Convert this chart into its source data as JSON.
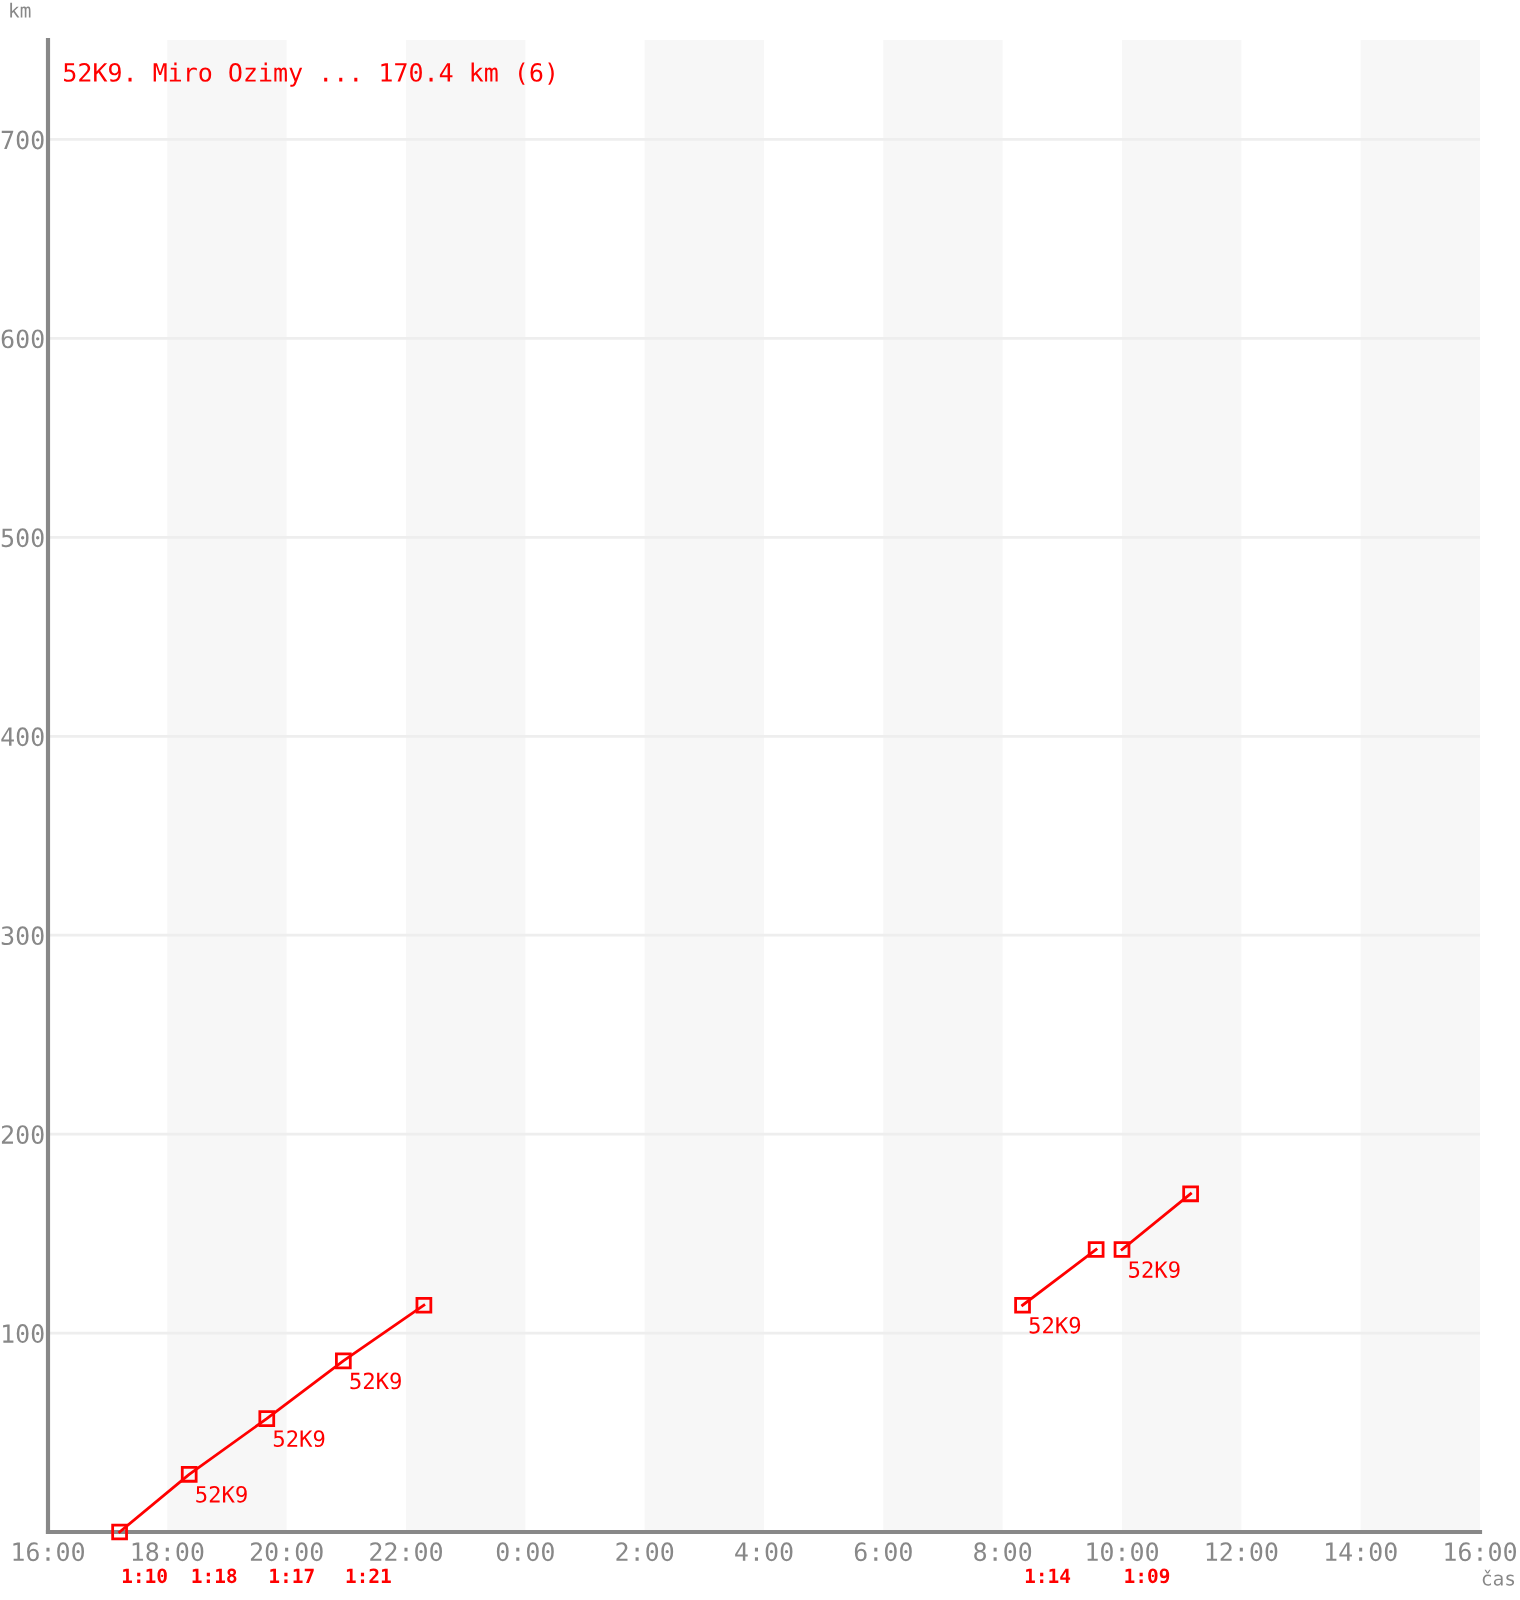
{
  "chart_data": {
    "type": "line",
    "title": "52K9. Miro Ozimy ... 170.4 km (6)",
    "xlabel": "čas",
    "ylabel": "km",
    "xlim": [
      "2000-01-01T16:00",
      "2000-01-02T16:00"
    ],
    "ylim": [
      0,
      750
    ],
    "xticks": [
      {
        "value": "2000-01-01T16:00",
        "label": "16:00"
      },
      {
        "value": "2000-01-01T18:00",
        "label": "18:00"
      },
      {
        "value": "2000-01-01T20:00",
        "label": "20:00"
      },
      {
        "value": "2000-01-01T22:00",
        "label": "22:00"
      },
      {
        "value": "2000-01-02T00:00",
        "label": "0:00"
      },
      {
        "value": "2000-01-02T02:00",
        "label": "2:00"
      },
      {
        "value": "2000-01-02T04:00",
        "label": "4:00"
      },
      {
        "value": "2000-01-02T06:00",
        "label": "6:00"
      },
      {
        "value": "2000-01-02T08:00",
        "label": "8:00"
      },
      {
        "value": "2000-01-02T10:00",
        "label": "10:00"
      },
      {
        "value": "2000-01-02T12:00",
        "label": "12:00"
      },
      {
        "value": "2000-01-02T14:00",
        "label": "14:00"
      },
      {
        "value": "2000-01-02T16:00",
        "label": "16:00"
      }
    ],
    "yticks": [
      100,
      200,
      300,
      400,
      500,
      600,
      700
    ],
    "grid": "y",
    "legend": false,
    "marker": "square",
    "line_style": "solid",
    "series": [
      {
        "color": "#ff0000",
        "x": [
          "2000-01-01T17:12",
          "2000-01-01T18:22",
          "2000-01-01T19:40",
          "2000-01-01T20:57",
          "2000-01-01T22:18"
        ],
        "values": [
          0,
          29,
          57,
          86,
          114
        ]
      },
      {
        "color": "#ff0000",
        "x": [
          "2000-01-02T08:20",
          "2000-01-02T09:34"
        ],
        "values": [
          114,
          142
        ]
      },
      {
        "color": "#ff0000",
        "x": [
          "2000-01-02T10:00",
          "2000-01-02T11:09"
        ],
        "values": [
          142,
          170
        ]
      }
    ],
    "bands": [
      {
        "axis": "x",
        "from": "2000-01-01T18:00",
        "to": "2000-01-01T20:00",
        "color": "#f7f7f7"
      },
      {
        "axis": "x",
        "from": "2000-01-01T22:00",
        "to": "2000-01-02T00:00",
        "color": "#f7f7f7"
      },
      {
        "axis": "x",
        "from": "2000-01-02T02:00",
        "to": "2000-01-02T04:00",
        "color": "#f7f7f7"
      },
      {
        "axis": "x",
        "from": "2000-01-02T06:00",
        "to": "2000-01-02T08:00",
        "color": "#f7f7f7"
      },
      {
        "axis": "x",
        "from": "2000-01-02T10:00",
        "to": "2000-01-02T12:00",
        "color": "#f7f7f7"
      },
      {
        "axis": "x",
        "from": "2000-01-02T14:00",
        "to": "2000-01-02T16:00",
        "color": "#f7f7f7"
      }
    ],
    "annotations": [
      {
        "text": "52K9",
        "x": "2000-01-01T18:22",
        "y": 29
      },
      {
        "text": "52K9",
        "x": "2000-01-01T19:40",
        "y": 57
      },
      {
        "text": "52K9",
        "x": "2000-01-01T20:57",
        "y": 86
      },
      {
        "text": "52K9",
        "x": "2000-01-02T08:20",
        "y": 114
      },
      {
        "text": "52K9",
        "x": "2000-01-02T10:00",
        "y": 142
      },
      "1:10",
      "1:18",
      "1:17",
      "1:21",
      "1:14",
      "1:09"
    ]
  }
}
